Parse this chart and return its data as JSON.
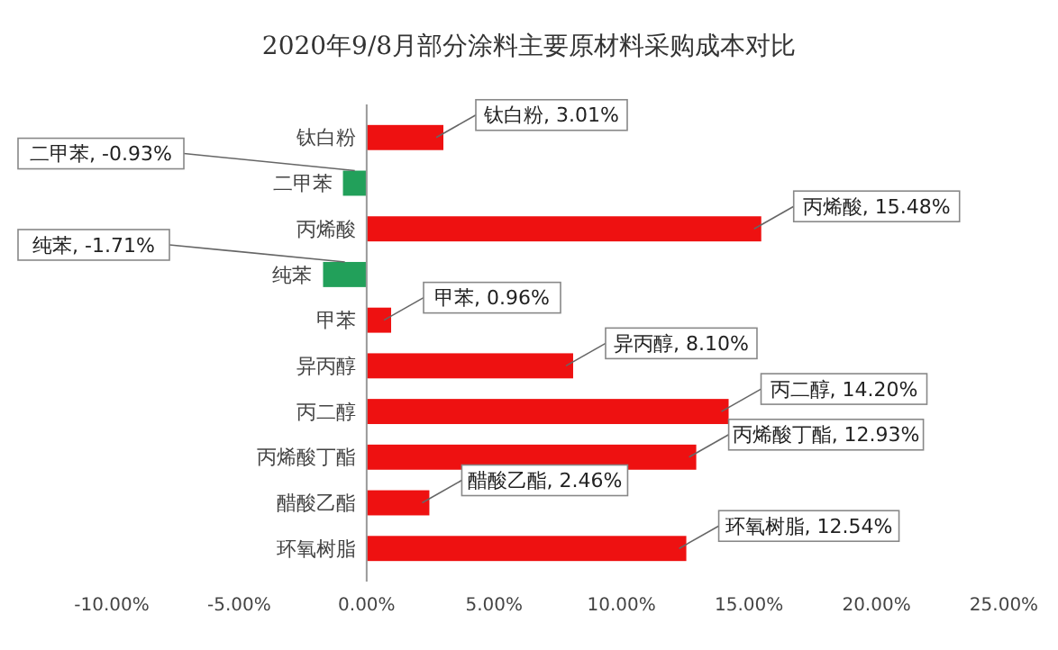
{
  "chart_data": {
    "type": "bar",
    "orientation": "horizontal",
    "title": "2020年9/8月部分涂料主要原材料采购成本对比",
    "categories": [
      "钛白粉",
      "二甲苯",
      "丙烯酸",
      "纯苯",
      "甲苯",
      "异丙醇",
      "丙二醇",
      "丙烯酸丁酯",
      "醋酸乙酯",
      "环氧树脂"
    ],
    "values": [
      3.01,
      -0.93,
      15.48,
      -1.71,
      0.96,
      8.1,
      14.2,
      12.93,
      2.46,
      12.54
    ],
    "colors": [
      "#ee1111",
      "#22a05a",
      "#ee1111",
      "#22a05a",
      "#ee1111",
      "#ee1111",
      "#ee1111",
      "#ee1111",
      "#ee1111",
      "#ee1111"
    ],
    "value_labels": [
      "钛白粉, 3.01%",
      "二甲苯, -0.93%",
      "丙烯酸, 15.48%",
      "纯苯, -1.71%",
      "甲苯, 0.96%",
      "异丙醇, 8.10%",
      "丙二醇, 14.20%",
      "丙烯酸丁酯, 12.93%",
      "醋酸乙酯, 2.46%",
      "环氧树脂, 12.54%"
    ],
    "xlim": [
      -10,
      25
    ],
    "xticks": [
      {
        "value": -10,
        "label": "-10.00%"
      },
      {
        "value": -5,
        "label": "-5.00%"
      },
      {
        "value": 0,
        "label": "0.00%"
      },
      {
        "value": 5,
        "label": "5.00%"
      },
      {
        "value": 10,
        "label": "10.00%"
      },
      {
        "value": 15,
        "label": "15.00%"
      },
      {
        "value": 20,
        "label": "20.00%"
      },
      {
        "value": 25,
        "label": "25.00%"
      }
    ],
    "grid": false
  }
}
